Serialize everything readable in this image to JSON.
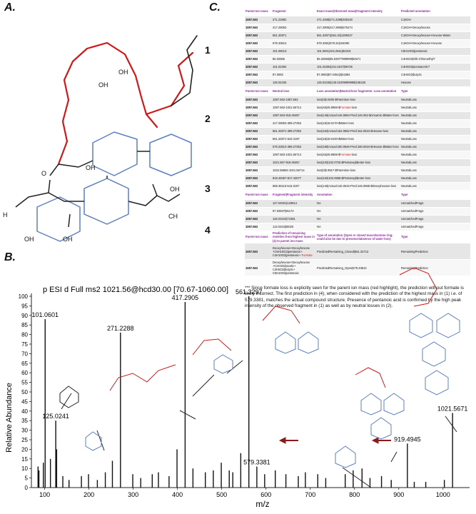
{
  "panels": {
    "a": "A.",
    "b": "B.",
    "c": "C."
  },
  "structure_labels": {
    "oh": "OH",
    "ch3": "CH",
    "sub3": "3",
    "h3c": "H",
    "o": "O"
  },
  "section_numbers": [
    "1",
    "2",
    "3",
    "4"
  ],
  "table": {
    "sections": [
      {
        "header": [
          "Parent Ion mass",
          "Fragment",
          "Exact mass|Observed mass|Fragment intensity",
          "Predicted annotation"
        ],
        "rows": [
          [
            "1087.563",
            "271.22882",
            "271.2288|271.2288|458100",
            "C16OH"
          ],
          [
            "1087.563",
            "417.29053",
            "417.2905|417.2906|675474",
            "C16OH+Deoxyhexose"
          ],
          [
            "1087.563",
            "561.32971",
            "561.32971|561.33|1299427",
            "C16OH+Deoxyhexose+Hexose-Water"
          ],
          [
            "1087.563",
            "579.33813",
            "579.3381|579.34|104090",
            "C16OH+Deoxyhexose+Hexose"
          ],
          [
            "1087.563",
            "101.06013",
            "101.0601|101.0611|84319",
            "C5H10O2|pentanoic"
          ],
          [
            "1087.563",
            "85.02866",
            "85.02866|85.02977999999|84571",
            "C4H6O3|Glb-Chloroethyl?"
          ],
          [
            "1087.563",
            "101.02394",
            "101.02394|101.0247|96726",
            "C4H6O3|acetoacetic?"
          ],
          [
            "1087.563",
            "87.0083",
            "87.0083|87.0454|3|61884",
            "C4H6O2|butyric"
          ],
          [
            "1087.563",
            "125.02436",
            "125.02436|125.02409999999|248425",
            "Hexose"
          ]
        ]
      },
      {
        "header": [
          "Parent Ion mass",
          "Neutral loss",
          "Loss annotation|Neutral loss fragments: Loss annotation",
          "Type"
        ],
        "rows": [
          [
            "1087.563",
            "1087.563-1087.563",
            "loss|0|0.0000-$Parention-loss",
            "NeutralLoss"
          ],
          [
            "1087.563",
            "1087.563-1021.56714",
            "loss|46|45.9959-$Formate-loss",
            "NeutralLoss"
          ],
          [
            "1087.563",
            "1087.563-919.49457",
            "loss|146|Actual:146.0684-Pred:146.052-$cinnamic-$Water-loss",
            "NeutralLoss"
          ],
          [
            "1087.563",
            "417.29053-399.27353",
            "loss|18|18.0170-$Water-loss",
            "NeutralLoss"
          ],
          [
            "1087.563",
            "561.32971-399.27353",
            "loss|162|Actual:162.0562-Pred:162.0534-$Hexose-loss",
            "NeutralLoss"
          ],
          [
            "1087.563",
            "561.32971-543.3197",
            "loss|18|18.0100-$Water-loss",
            "NeutralLoss"
          ],
          [
            "1087.563",
            "579.33813-399.27353",
            "loss|180|Actual:180.0646-Pred:180.0634-$Hexose-$Water-loss",
            "NeutralLoss"
          ],
          [
            "1087.563",
            "1087.563-1021.56714",
            "loss|46|45.9959-$Formate-loss",
            "NeutralLoss"
          ],
          [
            "1087.563",
            "1021.567-919.49457",
            "loss|102|102.0726-$Pentanoyl$ester-loss",
            "NeutralLoss"
          ],
          [
            "1087.563",
            "1022.55884-1021.56714",
            "loss|0|0.9917-$Parention-loss",
            "NeutralLoss"
          ],
          [
            "1087.563",
            "919.49457-817.42677",
            "loss|102|102.0658-$Pentanoyl$ester-loss",
            "NeutralLoss"
          ],
          [
            "1087.563",
            "689.36116-543.3197",
            "loss|146|Actual:146.0615-Pred:146.0585-$Deoxyhexose-loss",
            "NeutralLoss"
          ]
        ]
      },
      {
        "header": [
          "Parent Ion mass",
          "Fragment|Fragment intensity",
          "Annotation",
          "Type"
        ],
        "rows": [
          [
            "1087.563",
            "127.04001|133814",
            "NA",
            "UnmatchedFrags"
          ],
          [
            "1087.563",
            "97.02837|55173",
            "NA",
            "UnmatchedFrags"
          ],
          [
            "1087.563",
            "126.03103|71081",
            "NA",
            "UnmatchedFrags"
          ],
          [
            "1087.563",
            "113.0234|56025",
            "NA",
            "UnmatchedFrags"
          ]
        ]
      },
      {
        "header": [
          "Parent Ion mass",
          "Prediction of remaining moieties from highest mass in (1) to parent ion mass",
          "Type of annotation (Open or closed macrolactone ring; could also be due to presence/absence of water loss)",
          "Type"
        ],
        "rows": [
          [
            "1087.563",
            "Deoxyhexose+Deoxyhexose +C5H10O2|pentanoic+ C4H10O2|pentanoic+ Formate",
            "PredictedRemaining_Closed|561.32713",
            "RemainingPrediction"
          ],
          [
            "1087.563",
            "Deoxyhexose+Deoxyhexose +C2H4O2|acetic+ C4H6O2|butyric+ C5H10O2|pentanoic",
            "PredictedRemaining_Open|579.33813",
            "RemainingPrediction"
          ]
        ]
      }
    ]
  },
  "footnote": "*** Since formate loss is explicitly seen for the parent ion mass (red highlight), the prediction without formate is likely incorrect. The first prediction in (4), when considered with the prediction of the highest mass in (1) i.e. of 579.3381, matches the actual compound structure.  Presence of pentanoic acid is confirmed by the high peak intensity of the observed fragment in (1) as well as by neutral losses in (2).",
  "chart_data": {
    "type": "bar",
    "title": "p ESI d Full ms2 1021.56@hcd30.00 [70.67-1060.00]",
    "xlabel": "m/z",
    "ylabel": "Relative Abundance",
    "xlim": [
      70,
      1060
    ],
    "ylim": [
      0,
      100
    ],
    "xticks": [
      100,
      200,
      300,
      400,
      500,
      600,
      700,
      800,
      900,
      1000
    ],
    "yticks": [
      0,
      5,
      10,
      15,
      20,
      25,
      30,
      35,
      40,
      45,
      50,
      55,
      60,
      65,
      70,
      75,
      80,
      85,
      90,
      95,
      100
    ],
    "peaks": [
      {
        "x": 101.0601,
        "y": 88,
        "label": "101.0601"
      },
      {
        "x": 125.0241,
        "y": 35,
        "label": "125.0241"
      },
      {
        "x": 271.2288,
        "y": 81,
        "label": "271.2288"
      },
      {
        "x": 417.2905,
        "y": 97,
        "label": "417.2905"
      },
      {
        "x": 561.3297,
        "y": 100,
        "label": "561.3297"
      },
      {
        "x": 579.3381,
        "y": 11,
        "label": "579.3381"
      },
      {
        "x": 919.4945,
        "y": 23,
        "label": "919.4945"
      },
      {
        "x": 1021.5671,
        "y": 39,
        "label": "1021.5671"
      },
      {
        "x": 85,
        "y": 11
      },
      {
        "x": 87,
        "y": 9
      },
      {
        "x": 97,
        "y": 13
      },
      {
        "x": 113,
        "y": 15
      },
      {
        "x": 127,
        "y": 20
      },
      {
        "x": 141,
        "y": 6
      },
      {
        "x": 155,
        "y": 4
      },
      {
        "x": 183,
        "y": 6
      },
      {
        "x": 199,
        "y": 7
      },
      {
        "x": 219,
        "y": 4
      },
      {
        "x": 237,
        "y": 8
      },
      {
        "x": 253,
        "y": 14
      },
      {
        "x": 299,
        "y": 7
      },
      {
        "x": 317,
        "y": 5
      },
      {
        "x": 343,
        "y": 7
      },
      {
        "x": 357,
        "y": 8
      },
      {
        "x": 381,
        "y": 6
      },
      {
        "x": 399,
        "y": 20
      },
      {
        "x": 435,
        "y": 10
      },
      {
        "x": 463,
        "y": 8
      },
      {
        "x": 481,
        "y": 9
      },
      {
        "x": 499,
        "y": 13
      },
      {
        "x": 517,
        "y": 9
      },
      {
        "x": 525,
        "y": 8
      },
      {
        "x": 543,
        "y": 18
      },
      {
        "x": 597,
        "y": 7
      },
      {
        "x": 621,
        "y": 9
      },
      {
        "x": 645,
        "y": 7
      },
      {
        "x": 673,
        "y": 6
      },
      {
        "x": 689,
        "y": 8
      },
      {
        "x": 717,
        "y": 7
      },
      {
        "x": 735,
        "y": 5
      },
      {
        "x": 779,
        "y": 7
      },
      {
        "x": 797,
        "y": 9
      },
      {
        "x": 817,
        "y": 10
      },
      {
        "x": 835,
        "y": 5
      },
      {
        "x": 861,
        "y": 6
      },
      {
        "x": 883,
        "y": 4
      },
      {
        "x": 935,
        "y": 3
      },
      {
        "x": 961,
        "y": 3
      },
      {
        "x": 1003,
        "y": 4
      }
    ]
  },
  "colors": {
    "header_text": "#8a2a9a",
    "highlight": "#d01818",
    "ring_blue": "#5d7fc0",
    "chain_red": "#d01818",
    "arrow_red": "#8b1a1a"
  }
}
